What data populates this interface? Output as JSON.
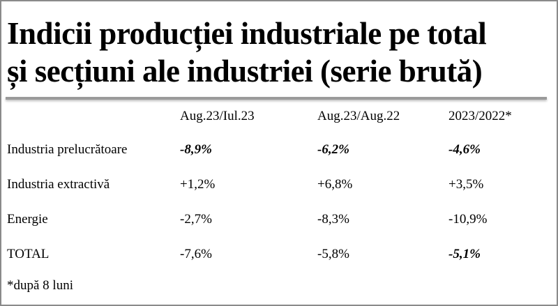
{
  "header": {
    "title_lines": [
      "Indicii producției industriale pe total",
      "și secțiuni ale industriei (serie brută)"
    ]
  },
  "table": {
    "columns": [
      "Aug.23/Iul.23",
      "Aug.23/Aug.22",
      "2023/2022*"
    ],
    "rows": [
      {
        "label": "Industria prelucrătoare",
        "cells": [
          "-8,9%",
          "-6,2%",
          "-4,6%"
        ],
        "emphasis": [
          true,
          true,
          true
        ]
      },
      {
        "label": "Industria extractivă",
        "cells": [
          "+1,2%",
          "+6,8%",
          "+3,5%"
        ],
        "emphasis": [
          false,
          false,
          false
        ]
      },
      {
        "label": "Energie",
        "cells": [
          "-2,7%",
          "-8,3%",
          "-10,9%"
        ],
        "emphasis": [
          false,
          false,
          false
        ]
      },
      {
        "label": "TOTAL",
        "cells": [
          "-7,6%",
          "-5,8%",
          "-5,1%"
        ],
        "emphasis": [
          false,
          false,
          true
        ]
      }
    ]
  },
  "footnote": "*după 8 luni"
}
